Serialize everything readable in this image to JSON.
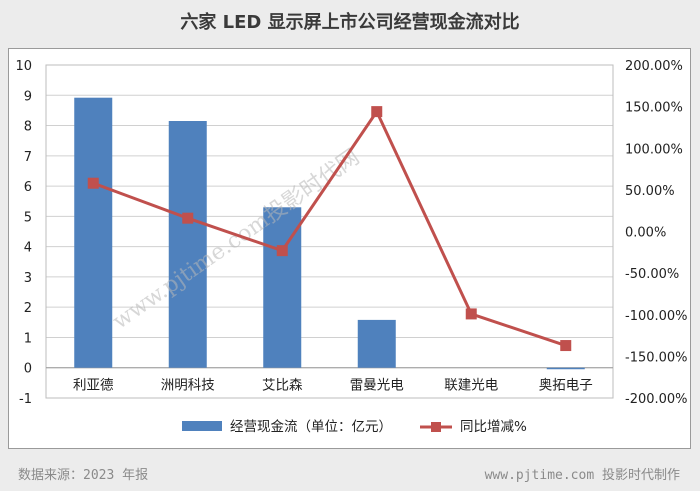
{
  "chart_data": {
    "type": "bar",
    "title": "六家 LED 显示屏上市公司经营现金流对比",
    "categories": [
      "利亚德",
      "洲明科技",
      "艾比森",
      "雷曼光电",
      "联建光电",
      "奥拓电子"
    ],
    "series": [
      {
        "name": "经营现金流（单位：亿元）",
        "type": "bar",
        "axis": "left",
        "color": "#4f81bd",
        "values": [
          8.92,
          8.15,
          5.3,
          1.58,
          0.0,
          -0.05
        ]
      },
      {
        "name": "同比增减%",
        "type": "line",
        "axis": "right",
        "color": "#c0504d",
        "values": [
          0.58,
          0.16,
          -0.23,
          1.44,
          -0.99,
          -1.37
        ]
      }
    ],
    "left_axis": {
      "ylim": [
        -1,
        10
      ],
      "ticks": [
        "-1",
        "0",
        "1",
        "2",
        "3",
        "4",
        "5",
        "6",
        "7",
        "8",
        "9",
        "10"
      ]
    },
    "right_axis": {
      "ylim": [
        -2.0,
        2.0
      ],
      "ticks": [
        "-200.00%",
        "-150.00%",
        "-100.00%",
        "-50.00%",
        "0.00%",
        "50.00%",
        "100.00%",
        "150.00%",
        "200.00%"
      ]
    },
    "grid": true,
    "legend_position": "bottom"
  },
  "watermark": "www.pjtime.com投影时代网",
  "footer": {
    "source": "数据来源：2023 年报",
    "credit": "www.pjtime.com 投影时代制作"
  }
}
